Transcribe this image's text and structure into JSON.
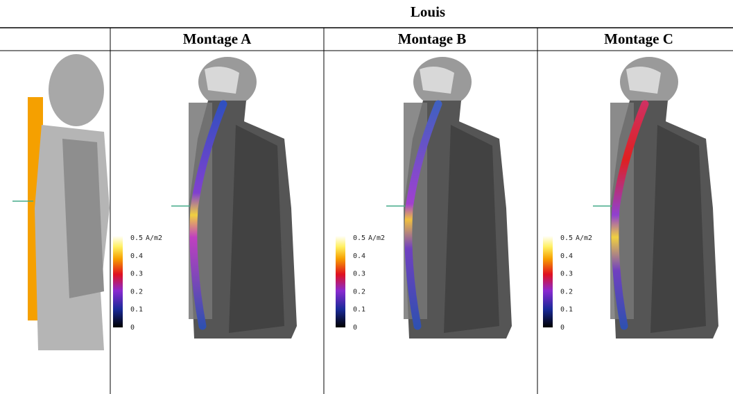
{
  "header": {
    "title": "Louis"
  },
  "columns": [
    {
      "title": "Montage A",
      "colorbar": {
        "ticks": [
          "0.5",
          "0.4",
          "0.3",
          "0.2",
          "0.1",
          "0"
        ],
        "unit": "A/m2"
      }
    },
    {
      "title": "Montage B",
      "colorbar": {
        "ticks": [
          "0.5",
          "0.4",
          "0.3",
          "0.2",
          "0.1",
          "0"
        ],
        "unit": "A/m2"
      }
    },
    {
      "title": "Montage C",
      "colorbar": {
        "ticks": [
          "0.5",
          "0.4",
          "0.3",
          "0.2",
          "0.1",
          "0"
        ],
        "unit": "A/m2"
      }
    }
  ]
}
